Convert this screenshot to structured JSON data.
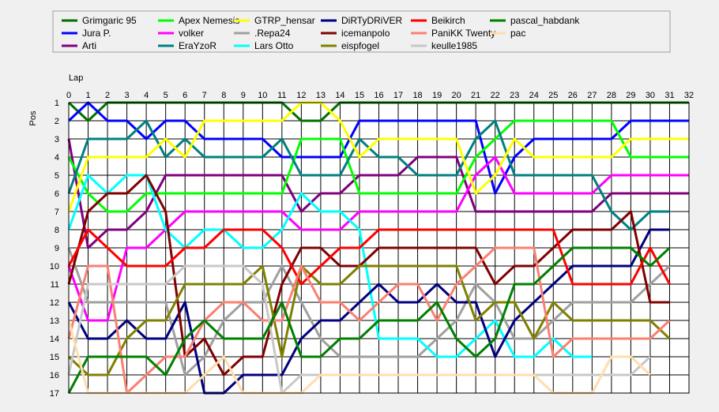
{
  "chart_data": {
    "type": "line",
    "xlabel": "Lap",
    "ylabel": "Pos",
    "xlim": [
      0,
      32
    ],
    "ylim": [
      1,
      17
    ],
    "y_inverted": true,
    "grid": true,
    "legend_position": "top",
    "x_ticks": [
      "0",
      "1",
      "2",
      "3",
      "4",
      "5",
      "6",
      "7",
      "8",
      "9",
      "10",
      "11",
      "12",
      "13",
      "14",
      "15",
      "16",
      "17",
      "18",
      "19",
      "20",
      "21",
      "22",
      "23",
      "24",
      "25",
      "26",
      "27",
      "28",
      "29",
      "30",
      "31",
      "32"
    ],
    "y_ticks": [
      "1",
      "2",
      "3",
      "4",
      "5",
      "6",
      "7",
      "8",
      "9",
      "10",
      "11",
      "12",
      "13",
      "14",
      "15",
      "16",
      "17"
    ],
    "series": [
      {
        "name": "Grimgaric 95",
        "color": "#007000",
        "laps": [
          0,
          1,
          2,
          3,
          4,
          5,
          6,
          7,
          8,
          9,
          10,
          11,
          12,
          13,
          14,
          15,
          16,
          17,
          18,
          19,
          20,
          21,
          22,
          23,
          24,
          25,
          26,
          27,
          28,
          29,
          30,
          31,
          32
        ],
        "values": [
          1,
          2,
          1,
          1,
          1,
          1,
          1,
          1,
          1,
          1,
          1,
          1,
          2,
          2,
          1,
          1,
          1,
          1,
          1,
          1,
          1,
          1,
          1,
          1,
          1,
          1,
          1,
          1,
          1,
          1,
          1,
          1,
          1
        ]
      },
      {
        "name": "Jura P.",
        "color": "#0000ff",
        "laps": [
          0,
          1,
          2,
          3,
          4,
          5,
          6,
          7,
          8,
          9,
          10,
          11,
          12,
          13,
          14,
          15,
          16,
          17,
          18,
          19,
          20,
          21,
          22,
          23,
          24,
          25,
          26,
          27,
          28,
          29,
          30,
          31,
          32
        ],
        "values": [
          2,
          1,
          2,
          2,
          3,
          2,
          2,
          3,
          3,
          3,
          3,
          4,
          4,
          4,
          4,
          2,
          2,
          2,
          2,
          2,
          2,
          2,
          6,
          4,
          3,
          3,
          3,
          3,
          3,
          2,
          2,
          2,
          2
        ]
      },
      {
        "name": "Arti",
        "color": "#800080",
        "laps": [
          0,
          1,
          2,
          3,
          4,
          5,
          6,
          7,
          8,
          9,
          10,
          11,
          12,
          13,
          14,
          15,
          16,
          17,
          18,
          19,
          20,
          21,
          22,
          23,
          24,
          25,
          26,
          27,
          28,
          29,
          30,
          31,
          32
        ],
        "values": [
          3,
          9,
          8,
          8,
          7,
          5,
          5,
          5,
          5,
          5,
          5,
          5,
          7,
          6,
          6,
          5,
          5,
          5,
          4,
          4,
          4,
          7,
          7,
          7,
          7,
          7,
          7,
          7,
          6,
          6,
          6,
          6,
          6
        ]
      },
      {
        "name": "Apex Nemesis",
        "color": "#00ff00",
        "laps": [
          0,
          1,
          2,
          3,
          4,
          5,
          6,
          7,
          8,
          9,
          10,
          11,
          12,
          13,
          14,
          15,
          16,
          17,
          18,
          19,
          20,
          21,
          22,
          23,
          24,
          25,
          26,
          27,
          28,
          29,
          30,
          31,
          32
        ],
        "values": [
          4,
          6,
          7,
          7,
          6,
          6,
          6,
          6,
          6,
          6,
          6,
          6,
          3,
          3,
          3,
          6,
          6,
          6,
          6,
          6,
          6,
          4,
          3,
          2,
          2,
          2,
          2,
          2,
          2,
          4,
          4,
          4,
          4
        ]
      },
      {
        "name": "volker",
        "color": "#ff00ff",
        "laps": [
          0,
          1,
          2,
          3,
          4,
          5,
          6,
          7,
          8,
          9,
          10,
          11,
          12,
          13,
          14,
          15,
          16,
          17,
          18,
          19,
          20,
          21,
          22,
          23,
          24,
          25,
          26,
          27,
          28,
          29,
          30,
          31,
          32
        ],
        "values": [
          10,
          13,
          13,
          9,
          9,
          8,
          7,
          7,
          7,
          7,
          7,
          7,
          8,
          8,
          8,
          7,
          7,
          7,
          7,
          7,
          7,
          5,
          4,
          6,
          6,
          6,
          6,
          6,
          5,
          5,
          5,
          5,
          5
        ]
      },
      {
        "name": "EraYzoR",
        "color": "#008080",
        "laps": [
          0,
          1,
          2,
          3,
          4,
          5,
          6,
          7,
          8,
          9,
          10,
          11,
          12,
          13,
          14,
          15,
          16,
          17,
          18,
          19,
          20,
          21,
          22,
          23,
          24,
          25,
          26,
          27,
          28,
          29,
          30,
          31
        ],
        "values": [
          6,
          3,
          3,
          3,
          2,
          4,
          3,
          4,
          4,
          4,
          4,
          3,
          5,
          5,
          5,
          3,
          4,
          4,
          5,
          5,
          5,
          3,
          2,
          5,
          5,
          5,
          5,
          5,
          7,
          8,
          7,
          7
        ]
      },
      {
        "name": "GTRP_hensar",
        "color": "#ffff00",
        "laps": [
          0,
          1,
          2,
          3,
          4,
          5,
          6,
          7,
          8,
          9,
          10,
          11,
          12,
          13,
          14,
          15,
          16,
          17,
          18,
          19,
          20,
          21,
          22,
          23,
          24,
          25,
          26,
          27,
          28,
          29,
          30,
          31,
          32
        ],
        "values": [
          7,
          4,
          4,
          4,
          4,
          3,
          4,
          2,
          2,
          2,
          2,
          2,
          1,
          1,
          2,
          4,
          3,
          3,
          3,
          3,
          3,
          6,
          5,
          3,
          4,
          4,
          4,
          4,
          4,
          3,
          3,
          3,
          3
        ]
      },
      {
        "name": ".Repa24",
        "color": "#a0a0a0",
        "laps": [
          0,
          1,
          2,
          3,
          4,
          5,
          6,
          7,
          8,
          9,
          10,
          11,
          12,
          13,
          14,
          15,
          16,
          17,
          18,
          19,
          20,
          21,
          22,
          23,
          24,
          25,
          26,
          27,
          28,
          29,
          30,
          31
        ],
        "values": [
          9,
          12,
          12,
          12,
          12,
          12,
          16,
          15,
          13,
          12,
          12,
          10,
          12,
          14,
          15,
          15,
          15,
          15,
          15,
          14,
          13,
          11,
          12,
          14,
          14,
          13,
          12,
          12,
          12,
          12,
          11,
          10
        ]
      },
      {
        "name": "Lars Otto",
        "color": "#00ffff",
        "laps": [
          0,
          1,
          2,
          3,
          4,
          5,
          6,
          7,
          8,
          9,
          10,
          11,
          12,
          13,
          14,
          15,
          16,
          17,
          18,
          19,
          20,
          21,
          22,
          23,
          24,
          25,
          26,
          27
        ],
        "values": [
          8,
          5,
          6,
          5,
          5,
          8,
          9,
          8,
          8,
          9,
          9,
          8,
          6,
          7,
          7,
          8,
          14,
          14,
          14,
          15,
          15,
          14,
          13,
          15,
          15,
          14,
          15,
          15
        ]
      },
      {
        "name": "DiRTyDRiVER",
        "color": "#000080",
        "laps": [
          0,
          1,
          2,
          3,
          4,
          5,
          6,
          7,
          8,
          9,
          10,
          11,
          12,
          13,
          14,
          15,
          16,
          17,
          18,
          19,
          20,
          21,
          22,
          23,
          24,
          25,
          26,
          27,
          28,
          29,
          30,
          31
        ],
        "values": [
          12,
          14,
          14,
          13,
          14,
          14,
          12,
          17,
          17,
          16,
          16,
          16,
          14,
          13,
          13,
          12,
          11,
          12,
          12,
          11,
          12,
          12,
          15,
          13,
          12,
          11,
          10,
          10,
          10,
          10,
          8,
          8
        ]
      },
      {
        "name": "icemanpolo",
        "color": "#800000",
        "laps": [
          0,
          1,
          2,
          3,
          4,
          5,
          6,
          7,
          8,
          9,
          10,
          11,
          12,
          13,
          14,
          15,
          16,
          17,
          18,
          19,
          20,
          21,
          22,
          23,
          24,
          25,
          26,
          27,
          28,
          29,
          30,
          31
        ],
        "values": [
          11,
          7,
          6,
          6,
          5,
          7,
          15,
          14,
          16,
          15,
          15,
          11,
          9,
          9,
          10,
          10,
          9,
          9,
          9,
          9,
          9,
          9,
          11,
          10,
          10,
          9,
          8,
          8,
          8,
          7,
          12,
          12
        ]
      },
      {
        "name": "eispfogel",
        "color": "#808000",
        "laps": [
          0,
          1,
          2,
          3,
          4,
          5,
          6,
          7,
          8,
          9,
          10,
          11,
          12,
          13,
          14,
          15,
          16,
          17,
          18,
          19,
          20,
          21,
          22,
          23,
          24,
          25,
          26,
          27,
          28,
          29,
          30,
          31
        ],
        "values": [
          15,
          16,
          16,
          14,
          13,
          13,
          11,
          11,
          11,
          11,
          10,
          15,
          10,
          11,
          11,
          10,
          10,
          10,
          10,
          10,
          10,
          13,
          12,
          12,
          14,
          12,
          13,
          13,
          13,
          13,
          13,
          14
        ]
      },
      {
        "name": "Beikirch",
        "color": "#ff0000",
        "laps": [
          0,
          1,
          2,
          3,
          4,
          5,
          6,
          7,
          8,
          9,
          10,
          11,
          12,
          13,
          14,
          15,
          16,
          17,
          18,
          19,
          20,
          21,
          22,
          23,
          24,
          25,
          26,
          27,
          28,
          29,
          30,
          31
        ],
        "values": [
          10,
          8,
          9,
          10,
          10,
          10,
          9,
          9,
          8,
          8,
          8,
          9,
          11,
          10,
          9,
          9,
          8,
          8,
          8,
          8,
          8,
          8,
          8,
          8,
          8,
          8,
          11,
          11,
          11,
          11,
          9,
          11
        ]
      },
      {
        "name": "PaniKK Twenty",
        "color": "#fa8072",
        "laps": [
          0,
          1,
          2,
          3,
          4,
          5,
          6,
          7,
          8,
          9,
          10,
          11,
          12,
          13,
          14,
          15,
          16,
          17,
          18,
          19,
          20,
          21,
          22,
          23,
          24,
          25,
          26,
          27,
          28,
          29,
          30,
          31
        ],
        "values": [
          14,
          10,
          10,
          17,
          16,
          15,
          15,
          13,
          12,
          12,
          13,
          13,
          10,
          12,
          12,
          13,
          12,
          11,
          11,
          13,
          11,
          10,
          9,
          9,
          9,
          15,
          14,
          14,
          14,
          14,
          14,
          13
        ]
      },
      {
        "name": "keulle1985",
        "color": "#c8c8c8",
        "laps": [
          0,
          1,
          2,
          3,
          4,
          5,
          6,
          7,
          8,
          9,
          10,
          11,
          12,
          13,
          14,
          15,
          16,
          17,
          18,
          19,
          20,
          21,
          22,
          23,
          24,
          25,
          26,
          27,
          28,
          29,
          30
        ],
        "values": [
          16,
          11,
          11,
          11,
          11,
          11,
          10,
          10,
          10,
          10,
          11,
          17,
          16,
          16,
          16,
          16,
          16,
          16,
          16,
          16,
          16,
          16,
          16,
          16,
          16,
          16,
          16,
          16,
          16,
          16,
          15
        ]
      },
      {
        "name": "pascal_habdank",
        "color": "#008000",
        "laps": [
          0,
          1,
          2,
          3,
          4,
          5,
          6,
          7,
          8,
          9,
          10,
          11,
          12,
          13,
          14,
          15,
          16,
          17,
          18,
          19,
          20,
          21,
          22,
          23,
          24,
          25,
          26,
          27,
          28,
          29,
          30,
          31
        ],
        "values": [
          17,
          15,
          15,
          15,
          15,
          16,
          14,
          13,
          14,
          14,
          14,
          12,
          15,
          15,
          14,
          14,
          13,
          13,
          13,
          12,
          14,
          15,
          14,
          11,
          11,
          10,
          9,
          9,
          9,
          9,
          10,
          9
        ]
      },
      {
        "name": "pac",
        "color": "#ffdead",
        "laps": [
          0,
          1,
          2,
          3,
          4,
          5,
          6,
          7,
          8,
          9,
          10,
          11,
          12,
          13,
          14,
          15,
          16,
          17,
          18,
          19,
          20,
          21,
          22,
          23,
          24,
          25,
          26,
          27,
          28,
          29,
          30
        ],
        "values": [
          13,
          17,
          17,
          17,
          17,
          17,
          17,
          16,
          15,
          17,
          17,
          17,
          17,
          16,
          16,
          16,
          16,
          16,
          16,
          16,
          16,
          16,
          16,
          16,
          16,
          17,
          17,
          17,
          15,
          15,
          16
        ]
      }
    ]
  }
}
